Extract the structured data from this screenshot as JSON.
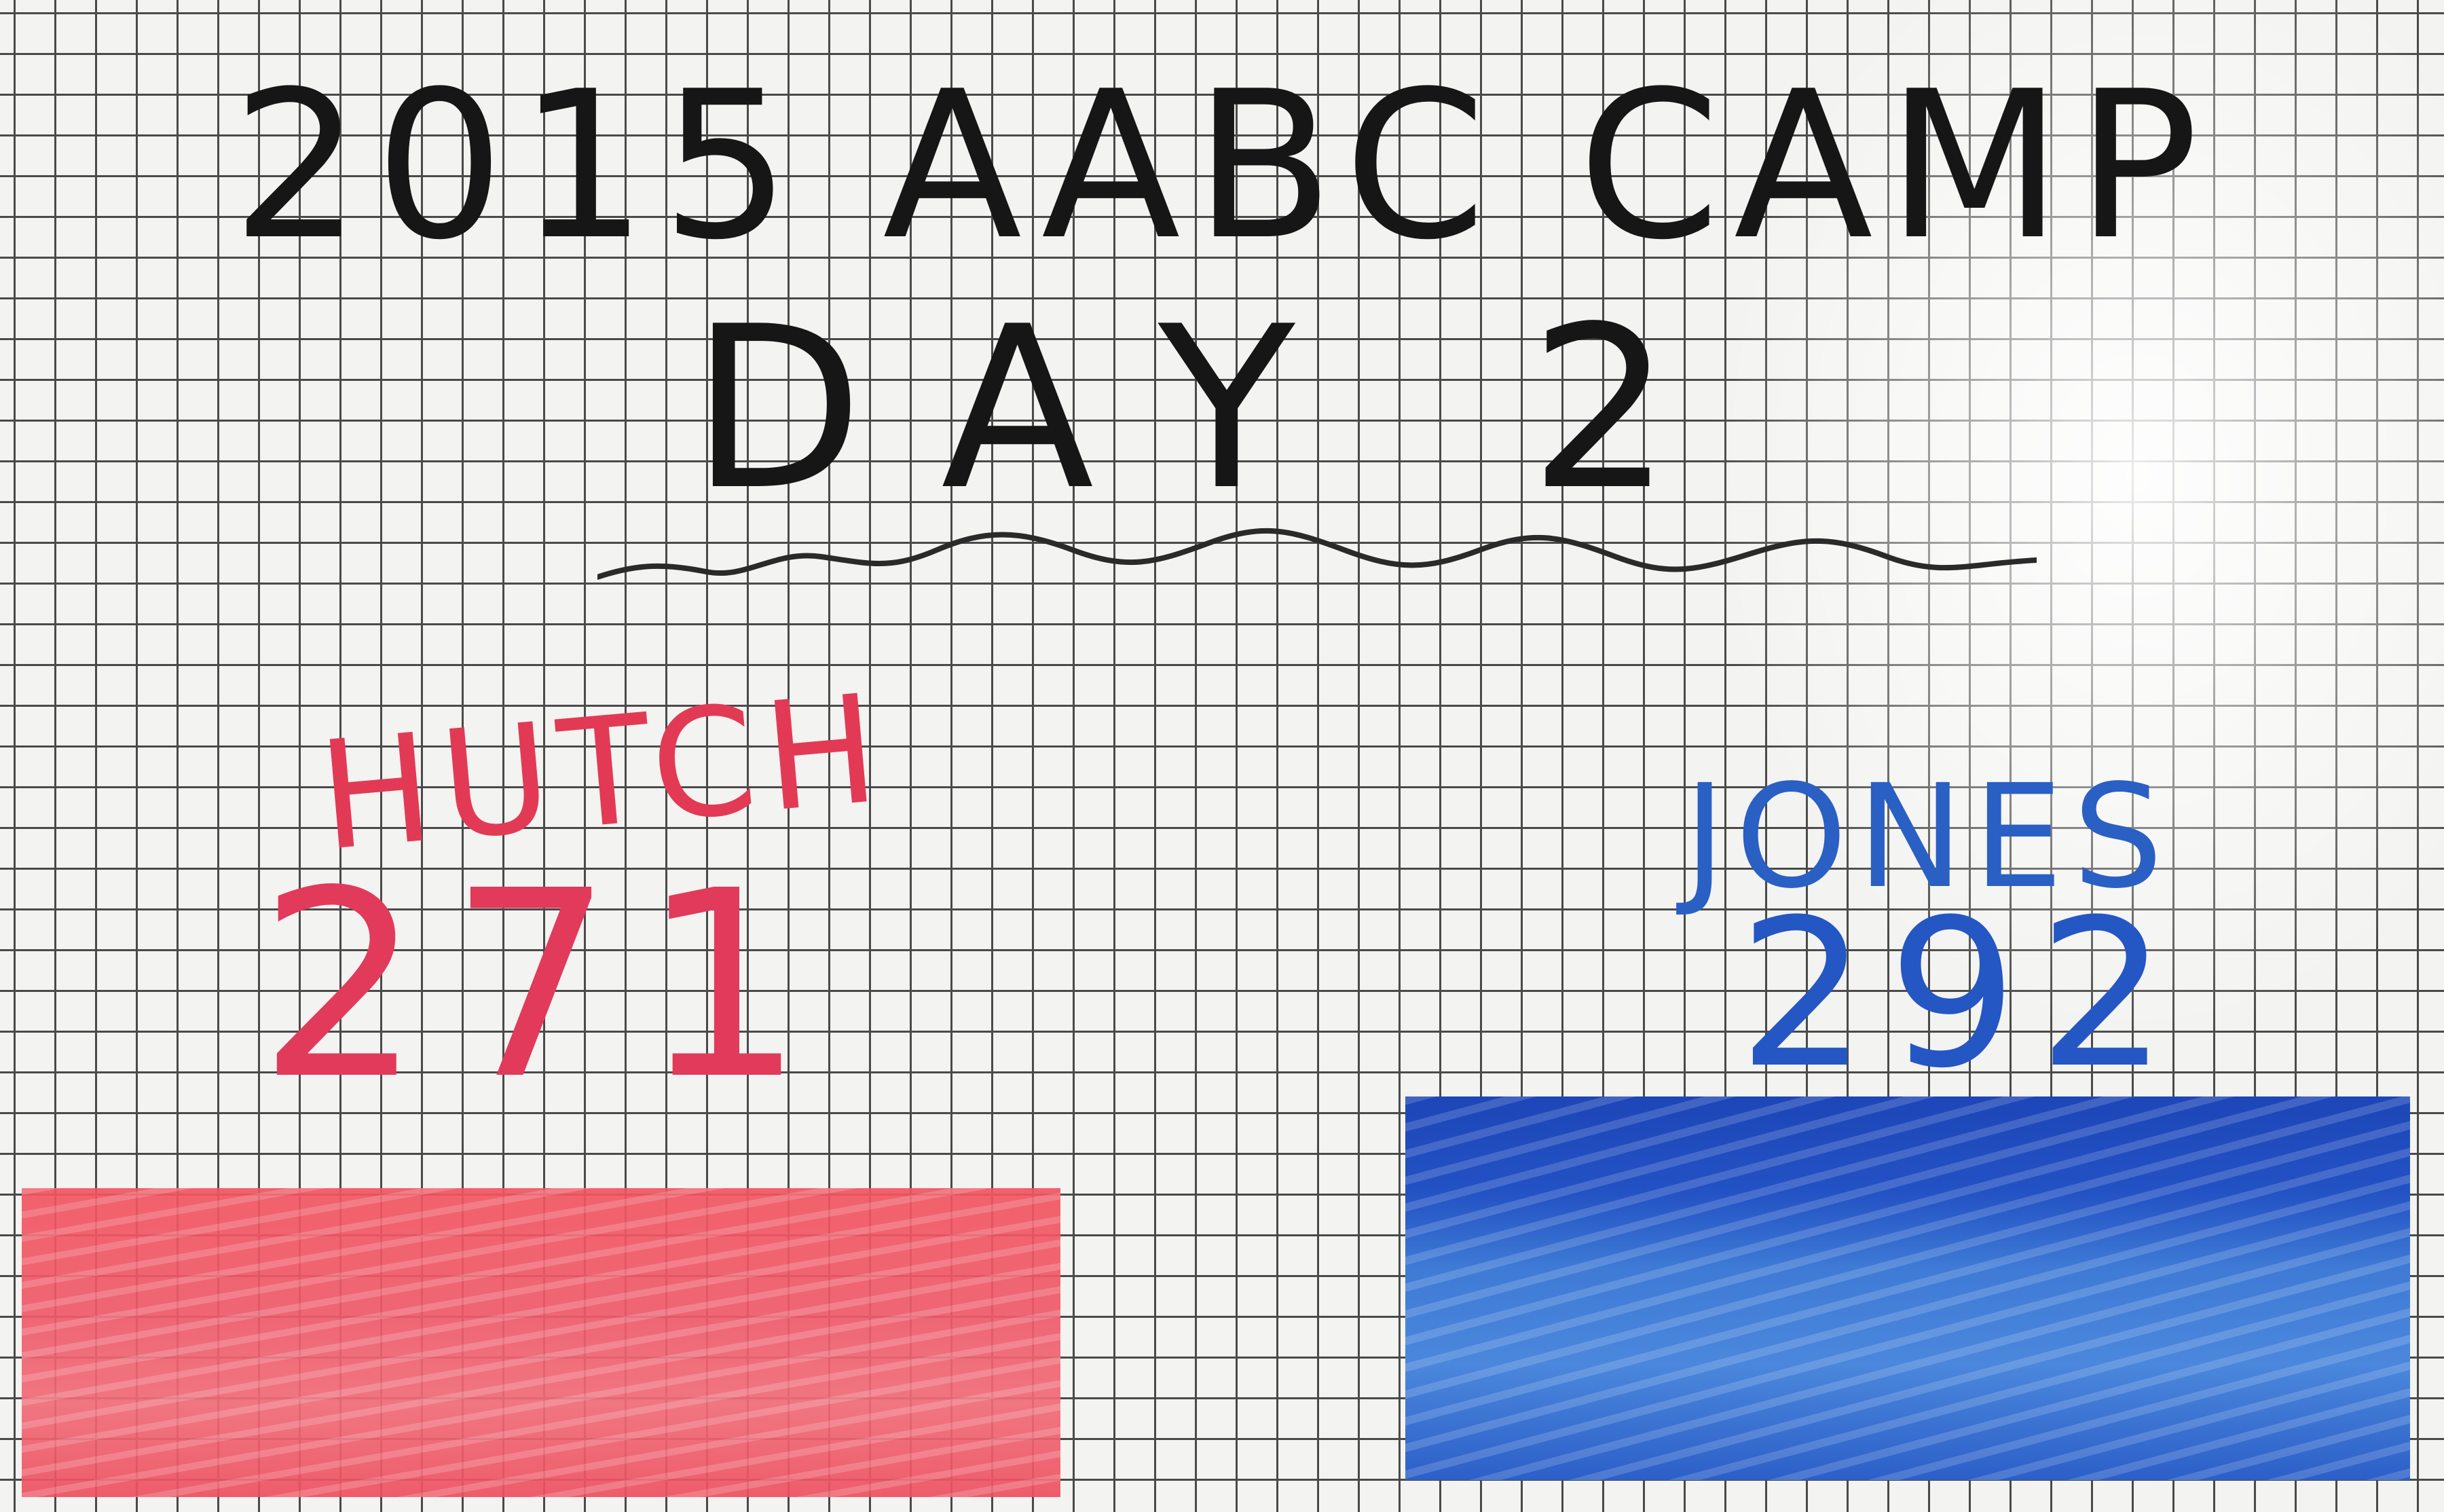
{
  "title": {
    "line1": "2015 AABC CAMP",
    "line2": "DAY 2"
  },
  "teams": [
    {
      "name": "HUTCH",
      "score": "271",
      "color": "#e23a55"
    },
    {
      "name": "JONES",
      "score": "292",
      "color": "#2456c4"
    }
  ]
}
